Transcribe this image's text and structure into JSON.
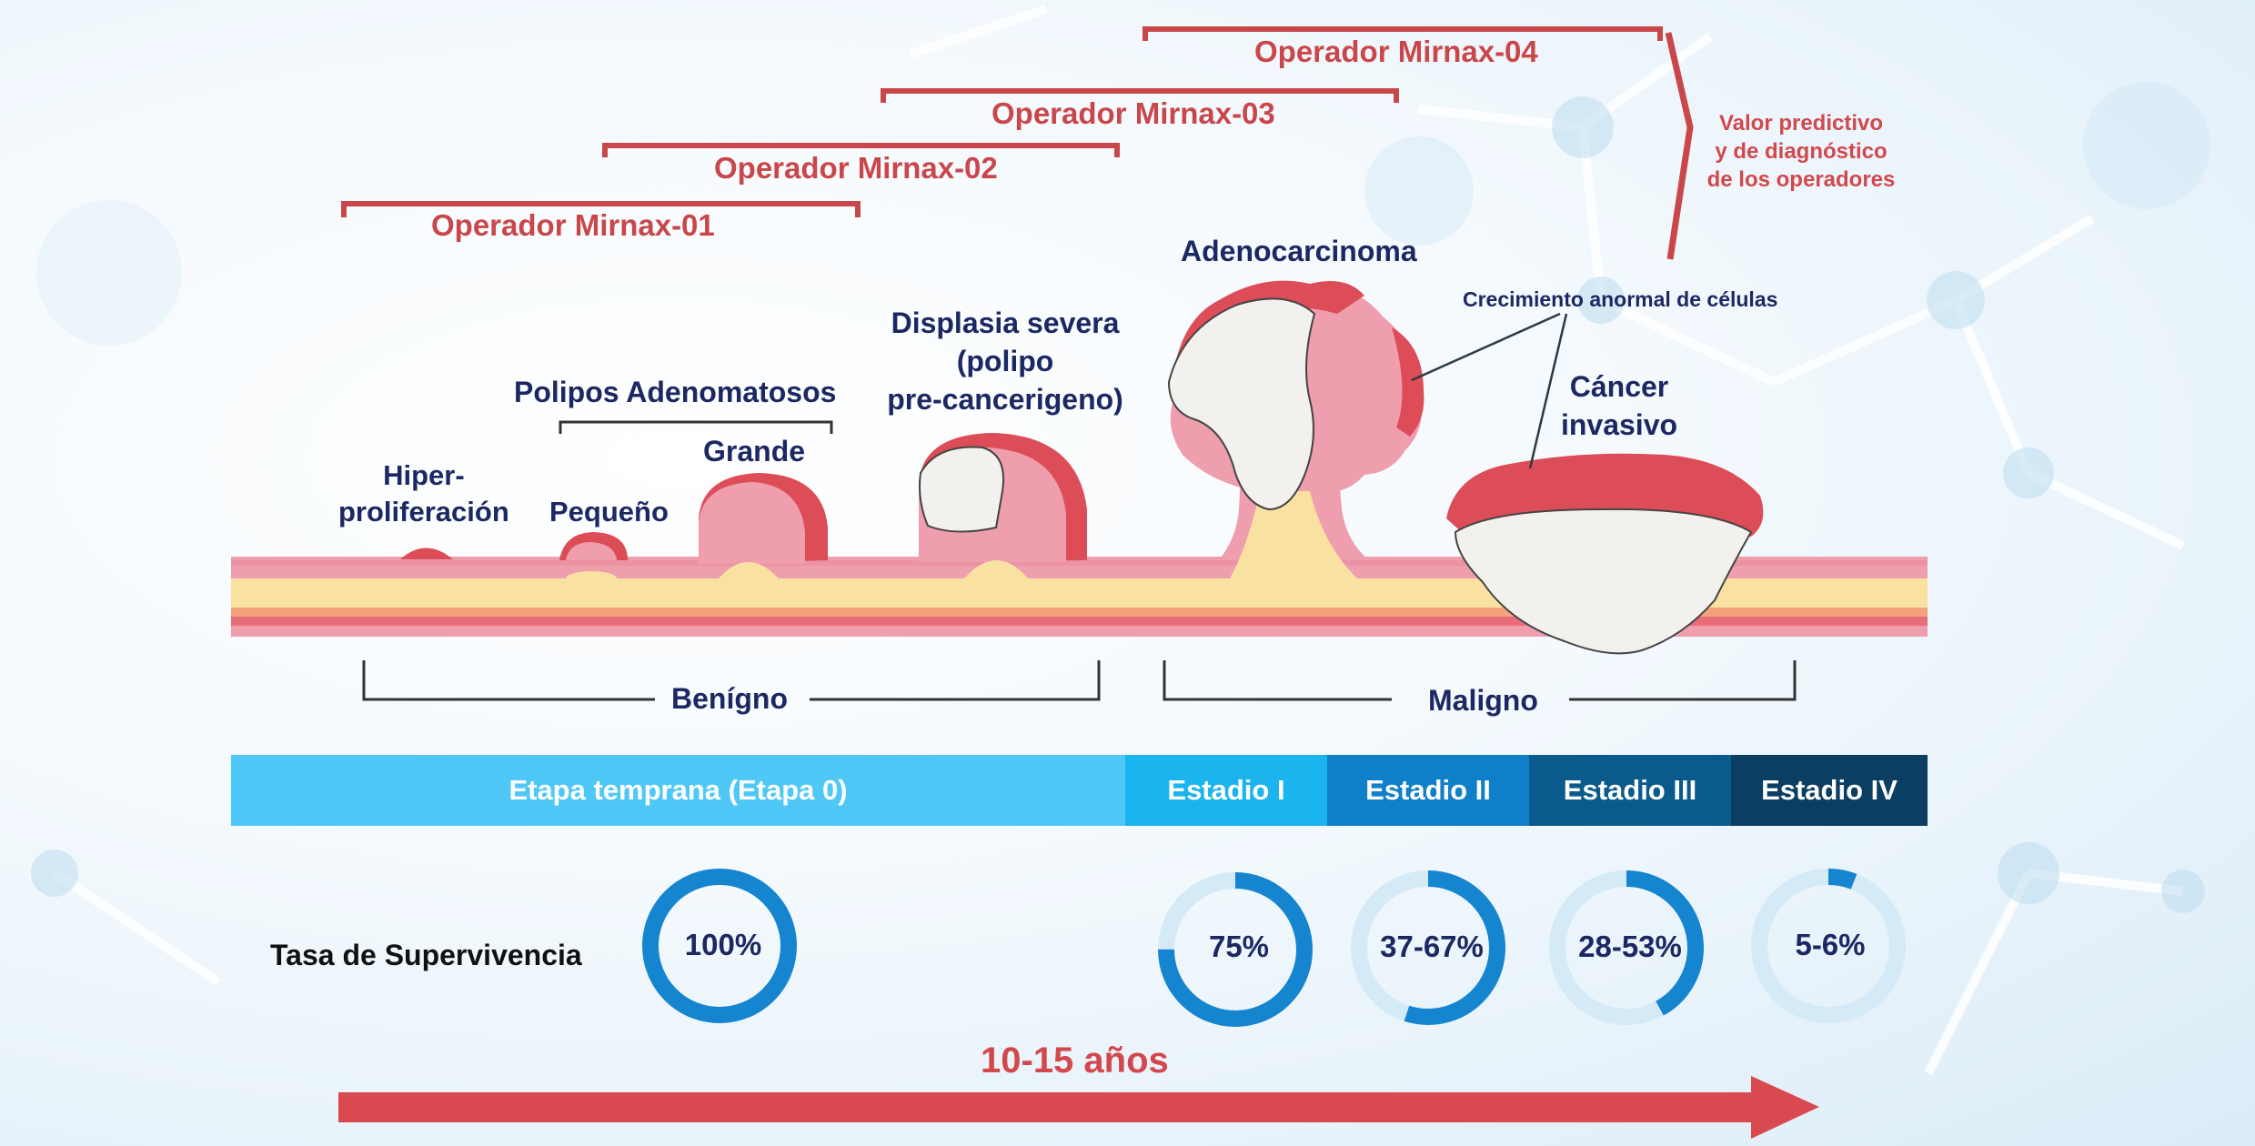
{
  "operators": [
    {
      "label": "Operador Mirnax-01"
    },
    {
      "label": "Operador Mirnax-02"
    },
    {
      "label": "Operador Mirnax-03"
    },
    {
      "label": "Operador Mirnax-04"
    }
  ],
  "predictive_value": [
    "Valor predictivo",
    "y de diagnóstico",
    "de los operadores"
  ],
  "lesions": {
    "hyper": [
      "Hiper-",
      "proliferación"
    ],
    "polyps_group": "Polipos Adenomatosos",
    "small": "Pequeño",
    "large": "Grande",
    "dysplasia": [
      "Displasia severa",
      "(polipo",
      "pre-cancerigeno)"
    ],
    "adenocarcinoma": "Adenocarcinoma",
    "abnormal_growth": "Crecimiento anormal de células",
    "invasive": [
      "Cáncer",
      "invasivo"
    ]
  },
  "groups": {
    "benign": "Benígno",
    "malign": "Maligno"
  },
  "stages": [
    {
      "label": "Etapa temprana (Etapa 0)",
      "color": "#4fc8f8"
    },
    {
      "label": "Estadio I",
      "color": "#1bb4ef"
    },
    {
      "label": "Estadio II",
      "color": "#0f7fc9"
    },
    {
      "label": "Estadio III",
      "color": "#0a5a8d"
    },
    {
      "label": "Estadio IV",
      "color": "#0b3e63"
    }
  ],
  "survival": {
    "title": "Tasa de Supervivencia",
    "rates": [
      {
        "label": "100%",
        "fraction": 1.0
      },
      {
        "label": "75%",
        "fraction": 0.75
      },
      {
        "label": "37-67%",
        "fraction": 0.55
      },
      {
        "label": "28-53%",
        "fraction": 0.42
      },
      {
        "label": "5-6%",
        "fraction": 0.06
      }
    ]
  },
  "timeline": {
    "label": "10-15 años"
  },
  "colors": {
    "accent_red": "#c9474a",
    "navy_text": "#1c2863",
    "ring_blue": "#1585cf",
    "ring_track": "#d5eaf7",
    "tissue_pink": "#eea2b0",
    "tissue_red": "#d84a55",
    "tissue_yellow": "#f8e2a6",
    "tumor_white": "#f3f1ee"
  }
}
